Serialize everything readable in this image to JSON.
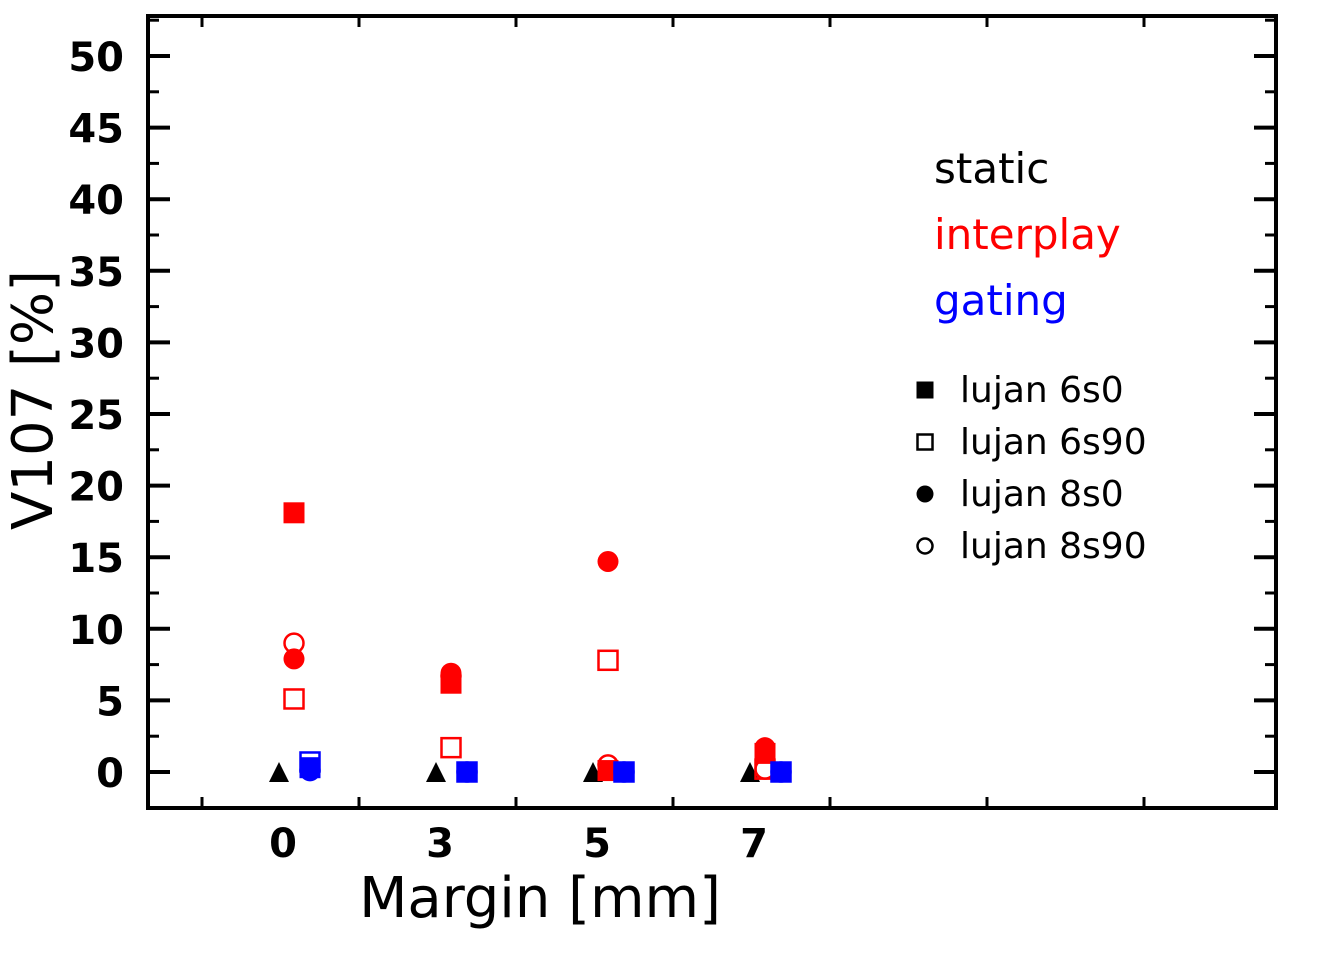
{
  "chart_data": {
    "type": "scatter",
    "xlabel": "Margin [mm]",
    "ylabel": "V107 [%]",
    "ylim": [
      -2.5,
      53.5
    ],
    "xticks_major": [
      "0",
      "3",
      "5",
      "7"
    ],
    "yticks": [
      0,
      5,
      10,
      15,
      20,
      25,
      30,
      35,
      40,
      45,
      50
    ],
    "grid": false,
    "legend_position": "top-right",
    "groups": [
      {
        "name": "static",
        "color": "#000000"
      },
      {
        "name": "interplay",
        "color": "#ff0000"
      },
      {
        "name": "gating",
        "color": "#0000ff"
      }
    ],
    "series_legend": [
      {
        "name": "lujan 6s0",
        "marker": "filled-square"
      },
      {
        "name": "lujan 6s90",
        "marker": "open-square"
      },
      {
        "name": "lujan 8s0",
        "marker": "filled-circle"
      },
      {
        "name": "lujan 8s90",
        "marker": "open-circle"
      }
    ],
    "points": [
      {
        "group": "static",
        "margin": "0",
        "marker": "filled-triangle",
        "value": 0
      },
      {
        "group": "static",
        "margin": "3",
        "marker": "filled-triangle",
        "value": 0
      },
      {
        "group": "static",
        "margin": "5",
        "marker": "filled-triangle",
        "value": 0
      },
      {
        "group": "static",
        "margin": "7",
        "marker": "filled-triangle",
        "value": 0
      },
      {
        "group": "interplay",
        "margin": "0",
        "marker": "filled-square",
        "value": 18.1
      },
      {
        "group": "interplay",
        "margin": "0",
        "marker": "open-square",
        "value": 5.1
      },
      {
        "group": "interplay",
        "margin": "0",
        "marker": "filled-circle",
        "value": 7.9
      },
      {
        "group": "interplay",
        "margin": "0",
        "marker": "open-circle",
        "value": 9.0
      },
      {
        "group": "interplay",
        "margin": "3",
        "marker": "filled-square",
        "value": 6.2
      },
      {
        "group": "interplay",
        "margin": "3",
        "marker": "open-square",
        "value": 1.7
      },
      {
        "group": "interplay",
        "margin": "3",
        "marker": "filled-circle",
        "value": 6.9
      },
      {
        "group": "interplay",
        "margin": "3",
        "marker": "open-circle",
        "value": 6.7
      },
      {
        "group": "interplay",
        "margin": "5",
        "marker": "filled-square",
        "value": 0.1
      },
      {
        "group": "interplay",
        "margin": "5",
        "marker": "open-square",
        "value": 7.8
      },
      {
        "group": "interplay",
        "margin": "5",
        "marker": "filled-circle",
        "value": 14.7
      },
      {
        "group": "interplay",
        "margin": "5",
        "marker": "open-circle",
        "value": 0.5
      },
      {
        "group": "interplay",
        "margin": "7",
        "marker": "filled-square",
        "value": 1.3
      },
      {
        "group": "interplay",
        "margin": "7",
        "marker": "open-square",
        "value": 0.2
      },
      {
        "group": "interplay",
        "margin": "7",
        "marker": "filled-circle",
        "value": 1.7
      },
      {
        "group": "interplay",
        "margin": "7",
        "marker": "open-circle",
        "value": 0.2
      },
      {
        "group": "gating",
        "margin": "0",
        "marker": "filled-square",
        "value": 0.3
      },
      {
        "group": "gating",
        "margin": "0",
        "marker": "open-square",
        "value": 0.7
      },
      {
        "group": "gating",
        "margin": "0",
        "marker": "filled-circle",
        "value": 0.2
      },
      {
        "group": "gating",
        "margin": "0",
        "marker": "open-circle",
        "value": 0.1
      },
      {
        "group": "gating",
        "margin": "3",
        "marker": "filled-square",
        "value": 0
      },
      {
        "group": "gating",
        "margin": "3",
        "marker": "open-square",
        "value": 0
      },
      {
        "group": "gating",
        "margin": "3",
        "marker": "filled-circle",
        "value": 0
      },
      {
        "group": "gating",
        "margin": "3",
        "marker": "open-circle",
        "value": 0
      },
      {
        "group": "gating",
        "margin": "5",
        "marker": "filled-square",
        "value": 0
      },
      {
        "group": "gating",
        "margin": "5",
        "marker": "open-square",
        "value": 0
      },
      {
        "group": "gating",
        "margin": "5",
        "marker": "filled-circle",
        "value": 0
      },
      {
        "group": "gating",
        "margin": "5",
        "marker": "open-circle",
        "value": 0
      },
      {
        "group": "gating",
        "margin": "7",
        "marker": "filled-square",
        "value": 0
      },
      {
        "group": "gating",
        "margin": "7",
        "marker": "open-square",
        "value": 0
      },
      {
        "group": "gating",
        "margin": "7",
        "marker": "filled-circle",
        "value": 0
      },
      {
        "group": "gating",
        "margin": "7",
        "marker": "open-circle",
        "value": 0
      }
    ]
  }
}
